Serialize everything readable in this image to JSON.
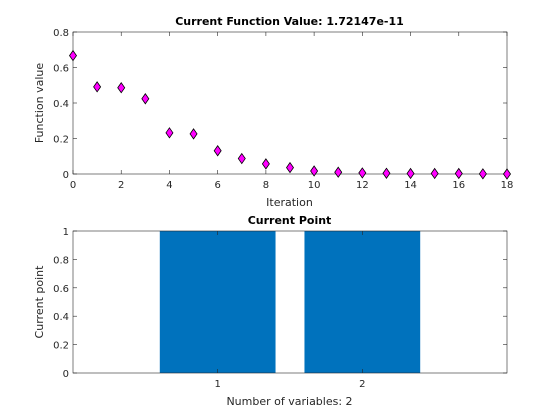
{
  "chart_data": [
    {
      "type": "scatter",
      "title": "Current Function Value: 1.72147e-11",
      "xlabel": "Iteration",
      "ylabel": "Function value",
      "xlim": [
        0,
        18
      ],
      "ylim": [
        0,
        0.8
      ],
      "xticks": [
        0,
        2,
        4,
        6,
        8,
        10,
        12,
        14,
        16,
        18
      ],
      "yticks": [
        0,
        0.2,
        0.4,
        0.6,
        0.8
      ],
      "grid": false,
      "marker": "diamond",
      "marker_color": "#ff00ff",
      "x": [
        0,
        1,
        2,
        3,
        4,
        5,
        6,
        7,
        8,
        9,
        10,
        11,
        12,
        13,
        14,
        15,
        16,
        17,
        18
      ],
      "y": [
        0.667,
        0.491,
        0.486,
        0.424,
        0.232,
        0.226,
        0.131,
        0.087,
        0.057,
        0.036,
        0.017,
        0.01,
        0.006,
        0.004,
        0.003,
        0.003,
        0.003,
        0.001,
        0.0
      ]
    },
    {
      "type": "bar",
      "title": "Current Point",
      "xlabel": "Number of variables: 2",
      "ylabel": "Current point",
      "xlim": [
        0,
        3
      ],
      "ylim": [
        0,
        1
      ],
      "categories": [
        "1",
        "2"
      ],
      "x": [
        1,
        2
      ],
      "yticks": [
        0,
        0.2,
        0.4,
        0.6,
        0.8,
        1
      ],
      "grid": false,
      "bar_color": "#0072bd",
      "values": [
        1,
        1
      ]
    }
  ]
}
